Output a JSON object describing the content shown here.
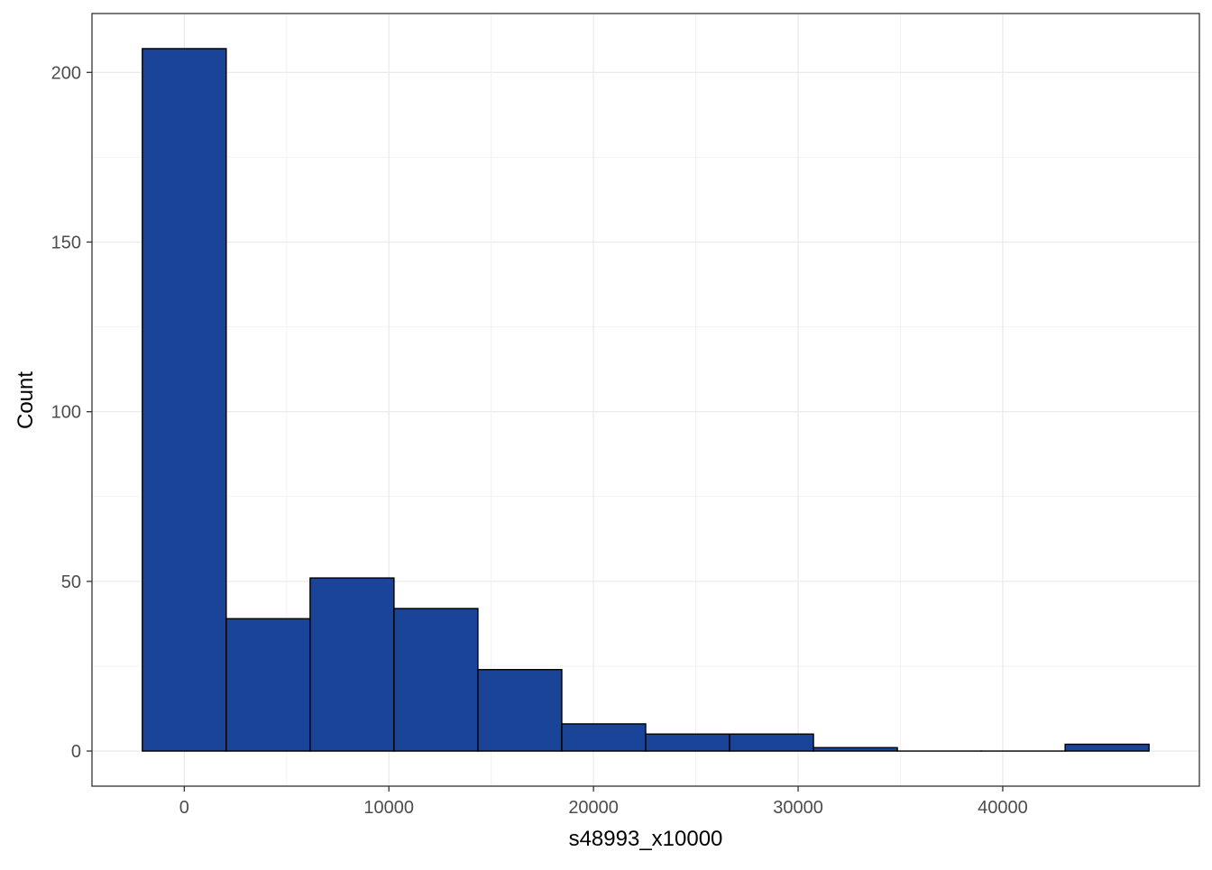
{
  "chart_data": {
    "type": "bar",
    "subtype": "histogram",
    "xlabel": "s48993_x10000",
    "ylabel": "Count",
    "bin_width": 4100,
    "bins": [
      {
        "x_min": -2050,
        "x_max": 2050,
        "count": 207
      },
      {
        "x_min": 2050,
        "x_max": 6150,
        "count": 39
      },
      {
        "x_min": 6150,
        "x_max": 10250,
        "count": 51
      },
      {
        "x_min": 10250,
        "x_max": 14350,
        "count": 42
      },
      {
        "x_min": 14350,
        "x_max": 18450,
        "count": 24
      },
      {
        "x_min": 18450,
        "x_max": 22550,
        "count": 8
      },
      {
        "x_min": 22550,
        "x_max": 26650,
        "count": 5
      },
      {
        "x_min": 26650,
        "x_max": 30750,
        "count": 5
      },
      {
        "x_min": 30750,
        "x_max": 34850,
        "count": 1
      },
      {
        "x_min": 34850,
        "x_max": 38950,
        "count": 0
      },
      {
        "x_min": 38950,
        "x_max": 43050,
        "count": 0
      },
      {
        "x_min": 43050,
        "x_max": 47150,
        "count": 2
      }
    ],
    "x_ticks": [
      0,
      10000,
      20000,
      30000,
      40000
    ],
    "y_ticks": [
      0,
      50,
      100,
      150,
      200
    ],
    "xlim": [
      -4510,
      49610
    ],
    "ylim": [
      -10.35,
      217.35
    ],
    "grid": true,
    "bar_fill": "#1a4498",
    "bar_outline": "#000000"
  }
}
